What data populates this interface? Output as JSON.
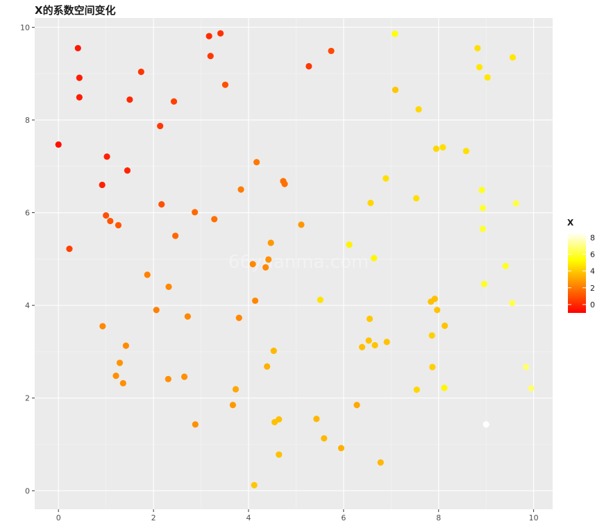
{
  "chart_data": {
    "type": "scatter",
    "title": "X的系数空间变化",
    "xlabel": "",
    "ylabel": "",
    "xlim": [
      -0.5,
      10.4
    ],
    "ylim": [
      -0.4,
      10.2
    ],
    "x_ticks": [
      "0",
      "2",
      "4",
      "6",
      "8",
      "10"
    ],
    "y_ticks": [
      "0",
      "2",
      "4",
      "6",
      "8",
      "10"
    ],
    "grid": true,
    "legend": {
      "title": "X",
      "placement": "right",
      "range": [
        -1.0,
        8.6
      ],
      "ticks": [
        "0",
        "2",
        "4",
        "6",
        "8"
      ],
      "colors": [
        "#FF0000",
        "#FF8000",
        "#FFFF00",
        "#FFFFFF"
      ]
    },
    "watermark": "66yuanma.com",
    "points": [
      [
        0.0,
        7.47,
        -0.6
      ],
      [
        0.41,
        9.55,
        -0.4
      ],
      [
        0.44,
        8.91,
        -0.3
      ],
      [
        0.44,
        8.49,
        -0.3
      ],
      [
        1.02,
        7.21,
        -0.2
      ],
      [
        0.92,
        6.6,
        -0.2
      ],
      [
        1.45,
        6.91,
        -0.1
      ],
      [
        1.5,
        8.44,
        0.0
      ],
      [
        1.74,
        9.04,
        0.3
      ],
      [
        0.23,
        5.22,
        0.6
      ],
      [
        1.0,
        5.94,
        1.0
      ],
      [
        1.09,
        5.82,
        1.1
      ],
      [
        1.26,
        5.73,
        1.2
      ],
      [
        2.14,
        7.87,
        0.4
      ],
      [
        2.17,
        6.18,
        1.0
      ],
      [
        2.43,
        8.4,
        0.6
      ],
      [
        3.17,
        9.81,
        0.1
      ],
      [
        3.2,
        9.38,
        0.4
      ],
      [
        3.41,
        9.87,
        0.2
      ],
      [
        3.51,
        8.76,
        1.0
      ],
      [
        2.46,
        5.5,
        1.6
      ],
      [
        2.87,
        6.01,
        1.6
      ],
      [
        3.28,
        5.86,
        1.8
      ],
      [
        3.84,
        6.5,
        2.1
      ],
      [
        4.17,
        7.09,
        2.0
      ],
      [
        4.73,
        6.68,
        1.8
      ],
      [
        4.76,
        6.62,
        1.8
      ],
      [
        5.27,
        9.16,
        0.4
      ],
      [
        5.74,
        9.49,
        0.8
      ],
      [
        1.87,
        4.66,
        2.2
      ],
      [
        2.32,
        4.4,
        2.4
      ],
      [
        2.06,
        3.9,
        2.2
      ],
      [
        2.72,
        3.76,
        2.4
      ],
      [
        3.8,
        3.73,
        2.4
      ],
      [
        4.14,
        4.1,
        2.4
      ],
      [
        4.09,
        4.89,
        2.4
      ],
      [
        4.36,
        4.82,
        2.4
      ],
      [
        4.42,
        4.99,
        2.6
      ],
      [
        4.47,
        5.35,
        2.8
      ],
      [
        5.11,
        5.74,
        2.8
      ],
      [
        0.93,
        3.55,
        2.4
      ],
      [
        1.42,
        3.13,
        2.5
      ],
      [
        1.29,
        2.76,
        2.7
      ],
      [
        1.21,
        2.48,
        2.6
      ],
      [
        1.36,
        2.32,
        2.6
      ],
      [
        2.31,
        2.41,
        2.6
      ],
      [
        2.65,
        2.46,
        2.6
      ],
      [
        2.88,
        1.43,
        2.6
      ],
      [
        3.67,
        1.85,
        2.8
      ],
      [
        3.73,
        2.19,
        3.2
      ],
      [
        4.39,
        2.68,
        3.4
      ],
      [
        4.53,
        3.02,
        3.6
      ],
      [
        4.55,
        1.48,
        3.8
      ],
      [
        4.64,
        1.54,
        3.8
      ],
      [
        4.64,
        0.78,
        3.8
      ],
      [
        4.12,
        0.12,
        4.0
      ],
      [
        5.43,
        1.55,
        3.6
      ],
      [
        5.59,
        1.13,
        3.6
      ],
      [
        5.95,
        0.92,
        3.4
      ],
      [
        6.28,
        1.85,
        3.2
      ],
      [
        6.39,
        3.1,
        3.8
      ],
      [
        6.53,
        3.24,
        3.9
      ],
      [
        6.66,
        3.14,
        3.9
      ],
      [
        6.91,
        3.21,
        3.9
      ],
      [
        6.55,
        3.71,
        4.0
      ],
      [
        6.78,
        0.61,
        3.6
      ],
      [
        5.51,
        4.12,
        4.7
      ],
      [
        6.12,
        5.31,
        5.1
      ],
      [
        6.64,
        5.02,
        5.2
      ],
      [
        6.57,
        6.21,
        4.4
      ],
      [
        6.89,
        6.74,
        4.6
      ],
      [
        7.08,
        9.86,
        5.4
      ],
      [
        7.09,
        8.65,
        4.0
      ],
      [
        7.58,
        8.23,
        4.4
      ],
      [
        7.53,
        6.31,
        4.6
      ],
      [
        7.54,
        2.18,
        4.4
      ],
      [
        7.86,
        3.35,
        4.2
      ],
      [
        7.87,
        2.67,
        4.2
      ],
      [
        7.84,
        4.08,
        3.8
      ],
      [
        7.92,
        4.14,
        3.8
      ],
      [
        7.97,
        3.9,
        3.9
      ],
      [
        8.13,
        3.56,
        3.9
      ],
      [
        8.12,
        2.22,
        5.2
      ],
      [
        7.95,
        7.38,
        4.4
      ],
      [
        8.09,
        7.41,
        4.6
      ],
      [
        8.58,
        7.33,
        4.6
      ],
      [
        8.82,
        9.55,
        4.6
      ],
      [
        8.86,
        9.14,
        4.8
      ],
      [
        9.03,
        8.92,
        4.8
      ],
      [
        9.56,
        9.35,
        4.8
      ],
      [
        8.91,
        6.49,
        5.8
      ],
      [
        8.93,
        6.1,
        6.0
      ],
      [
        8.93,
        5.65,
        6.0
      ],
      [
        8.96,
        4.46,
        5.8
      ],
      [
        9.41,
        4.85,
        5.8
      ],
      [
        9.63,
        6.2,
        6.2
      ],
      [
        9.55,
        4.05,
        6.4
      ],
      [
        9.84,
        2.67,
        6.8
      ],
      [
        9.95,
        2.21,
        6.8
      ],
      [
        9.0,
        1.43,
        8.6
      ]
    ]
  }
}
